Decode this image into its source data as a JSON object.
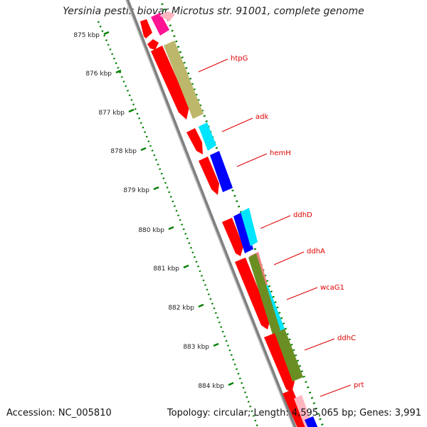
{
  "title": "Yersinia pestis biovar Microtus str. 91001, complete genome",
  "accession": "Accession: NC_005810",
  "summary": "Topology: circular; Length: 4,595,065 bp; Genes: 3,991",
  "ticks": [
    "875 kbp",
    "876 kbp",
    "877 kbp",
    "878 kbp",
    "879 kbp",
    "880 kbp",
    "881 kbp",
    "882 kbp",
    "883 kbp",
    "884 kbp"
  ],
  "genes": [
    "htpG",
    "adk",
    "hemH",
    "ddhD",
    "ddhA",
    "wcaG1",
    "ddhC",
    "prt"
  ],
  "colors": {
    "cds": "#ff0000",
    "magenta": "#ff1493",
    "olive": "#6b8e23",
    "khaki": "#bdb76b",
    "cyan": "#00e5ff",
    "blue": "#0000ff",
    "salmon": "#f08080",
    "pink": "#ffb6c1",
    "backbone": "#808080",
    "tick": "#008000",
    "label": "#e00000"
  }
}
